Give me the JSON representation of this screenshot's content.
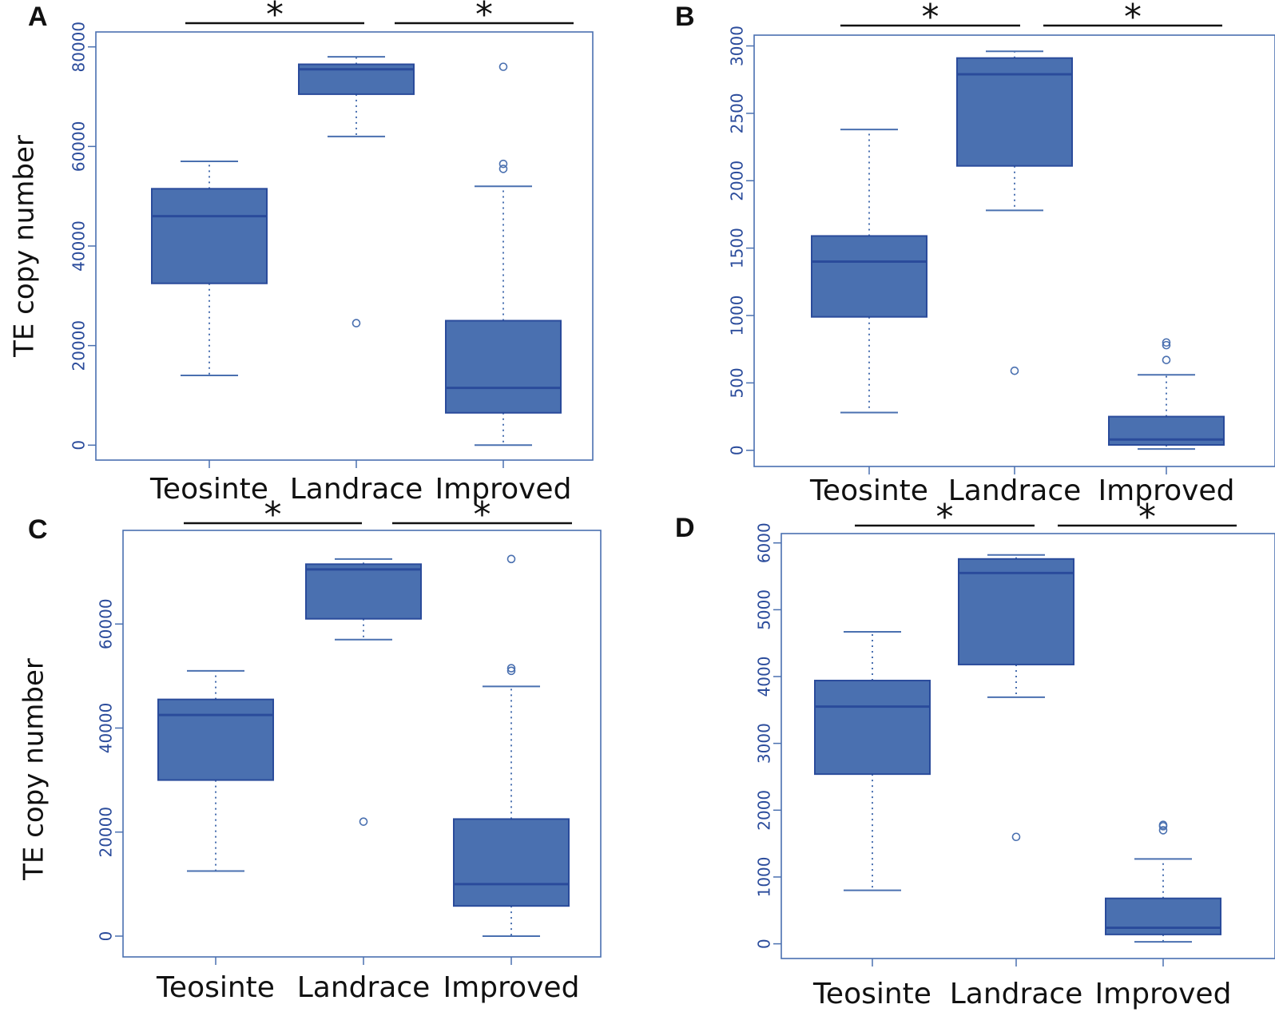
{
  "colors": {
    "box_fill": "#4a70b0",
    "box_line": "#2a4b9b",
    "axis": "#4a70b0",
    "text": "#111111"
  },
  "chart_data": [
    {
      "type": "box",
      "panel_label": "A",
      "ylabel": "TE copy number",
      "categories": [
        "Teosinte",
        "Landrace",
        "Improved"
      ],
      "ylim": [
        -3000,
        83000
      ],
      "yticks": [
        0,
        20000,
        40000,
        60000,
        80000
      ],
      "boxes": [
        {
          "whisker_low": 14000,
          "q1": 32500,
          "median": 46000,
          "q3": 51500,
          "whisker_high": 57000,
          "outliers": []
        },
        {
          "whisker_low": 62000,
          "q1": 70500,
          "median": 75500,
          "q3": 76500,
          "whisker_high": 78000,
          "outliers": [
            24500
          ]
        },
        {
          "whisker_low": 0,
          "q1": 6500,
          "median": 11500,
          "q3": 25000,
          "whisker_high": 52000,
          "outliers": [
            55500,
            56500,
            76000
          ]
        }
      ],
      "significance": [
        {
          "from": "Teosinte",
          "to": "Landrace",
          "label": "*"
        },
        {
          "from": "Landrace",
          "to": "Improved",
          "label": "*"
        }
      ]
    },
    {
      "type": "box",
      "panel_label": "B",
      "ylabel": "",
      "categories": [
        "Teosinte",
        "Landrace",
        "Improved"
      ],
      "ylim": [
        -120,
        3080
      ],
      "yticks": [
        0,
        500,
        1000,
        1500,
        2000,
        2500,
        3000
      ],
      "boxes": [
        {
          "whisker_low": 280,
          "q1": 990,
          "median": 1400,
          "q3": 1590,
          "whisker_high": 2380,
          "outliers": []
        },
        {
          "whisker_low": 1780,
          "q1": 2110,
          "median": 2790,
          "q3": 2910,
          "whisker_high": 2960,
          "outliers": [
            590
          ]
        },
        {
          "whisker_low": 10,
          "q1": 40,
          "median": 80,
          "q3": 250,
          "whisker_high": 560,
          "outliers": [
            670,
            780,
            800
          ]
        }
      ],
      "significance": [
        {
          "from": "Teosinte",
          "to": "Landrace",
          "label": "*"
        },
        {
          "from": "Landrace",
          "to": "Improved",
          "label": "*"
        }
      ]
    },
    {
      "type": "box",
      "panel_label": "C",
      "ylabel": "TE copy number",
      "categories": [
        "Teosinte",
        "Landrace",
        "Improved"
      ],
      "ylim": [
        -4000,
        78000
      ],
      "yticks": [
        0,
        20000,
        40000,
        60000
      ],
      "boxes": [
        {
          "whisker_low": 12500,
          "q1": 30000,
          "median": 42500,
          "q3": 45500,
          "whisker_high": 51000,
          "outliers": []
        },
        {
          "whisker_low": 57000,
          "q1": 61000,
          "median": 70500,
          "q3": 71500,
          "whisker_high": 72500,
          "outliers": [
            22000
          ]
        },
        {
          "whisker_low": 0,
          "q1": 5800,
          "median": 10000,
          "q3": 22500,
          "whisker_high": 48000,
          "outliers": [
            51000,
            51500,
            72500
          ]
        }
      ],
      "significance": [
        {
          "from": "Teosinte",
          "to": "Landrace",
          "label": "*"
        },
        {
          "from": "Landrace",
          "to": "Improved",
          "label": "*"
        }
      ]
    },
    {
      "type": "box",
      "panel_label": "D",
      "ylabel": "",
      "categories": [
        "Teosinte",
        "Landrace",
        "Improved"
      ],
      "ylim": [
        -220,
        6140
      ],
      "yticks": [
        0,
        1000,
        2000,
        3000,
        4000,
        5000,
        6000
      ],
      "boxes": [
        {
          "whisker_low": 800,
          "q1": 2540,
          "median": 3550,
          "q3": 3940,
          "whisker_high": 4670,
          "outliers": []
        },
        {
          "whisker_low": 3690,
          "q1": 4180,
          "median": 5550,
          "q3": 5760,
          "whisker_high": 5820,
          "outliers": [
            1600
          ]
        },
        {
          "whisker_low": 30,
          "q1": 140,
          "median": 240,
          "q3": 680,
          "whisker_high": 1270,
          "outliers": [
            1700,
            1760,
            1780
          ]
        }
      ],
      "significance": [
        {
          "from": "Teosinte",
          "to": "Landrace",
          "label": "*"
        },
        {
          "from": "Landrace",
          "to": "Improved",
          "label": "*"
        }
      ]
    }
  ]
}
